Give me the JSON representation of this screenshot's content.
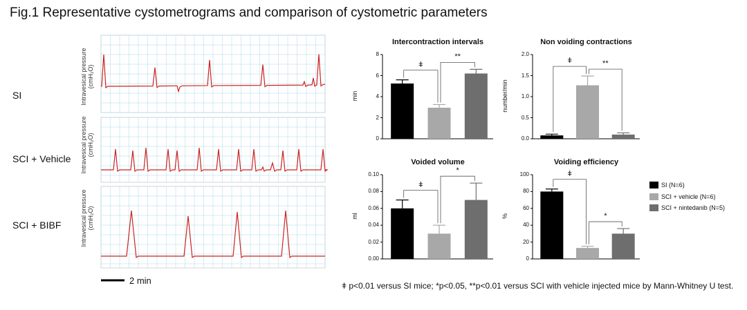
{
  "figure_title": "Fig.1 Representative cystometrograms and comparison of cystometric parameters",
  "traces": {
    "rows": [
      {
        "label": "SI"
      },
      {
        "label": "SCI + Vehicle"
      },
      {
        "label": "SCI + BIBF"
      }
    ],
    "ylabel_line1": "Intravesical pressure",
    "ylabel_line2": "(cmH₂O)",
    "scale_bar_label": "2 min",
    "trace_color": "#cc2222",
    "grid_color": "#a8d8e8"
  },
  "legend": [
    {
      "label": "SI (N=6)",
      "color": "#000000"
    },
    {
      "label": "SCI + vehicle (N=6)",
      "color": "#a8a8a8"
    },
    {
      "label": "SCI + nintedanib (N=5)",
      "color": "#6e6e6e"
    }
  ],
  "footnote": "ǂ p<0.01 versus SI mice; *p<0.05, **p<0.01 versus SCI with vehicle injected mice by Mann-Whitney U test.",
  "chart_data": [
    {
      "type": "bar",
      "title": "Intercontraction intervals",
      "ylabel": "min",
      "ylim": [
        0,
        8
      ],
      "yticks": [
        "0",
        "2",
        "4",
        "6",
        "8"
      ],
      "values": [
        5.25,
        2.95,
        6.2
      ],
      "errors": [
        0.35,
        0.3,
        0.4
      ],
      "colors": [
        "#000000",
        "#a8a8a8",
        "#6e6e6e"
      ],
      "significance": [
        {
          "from": 0,
          "to": 1,
          "label": "ǂ"
        },
        {
          "from": 1,
          "to": 2,
          "label": "**"
        }
      ]
    },
    {
      "type": "bar",
      "title": "Non voiding contractions",
      "ylabel": "number/min",
      "ylim": [
        0,
        2.0
      ],
      "yticks": [
        "0.0",
        "0.5",
        "1.0",
        "1.5",
        "2.0"
      ],
      "values": [
        0.08,
        1.27,
        0.1
      ],
      "errors": [
        0.03,
        0.22,
        0.04
      ],
      "colors": [
        "#000000",
        "#a8a8a8",
        "#6e6e6e"
      ],
      "significance": [
        {
          "from": 0,
          "to": 1,
          "label": "ǂ"
        },
        {
          "from": 1,
          "to": 2,
          "label": "**"
        }
      ]
    },
    {
      "type": "bar",
      "title": "Voided volume",
      "ylabel": "ml",
      "ylim": [
        0,
        0.1
      ],
      "yticks": [
        "0.00",
        "0.02",
        "0.04",
        "0.06",
        "0.08",
        "0.10"
      ],
      "values": [
        0.06,
        0.03,
        0.07
      ],
      "errors": [
        0.01,
        0.01,
        0.02
      ],
      "colors": [
        "#000000",
        "#a8a8a8",
        "#6e6e6e"
      ],
      "significance": [
        {
          "from": 0,
          "to": 1,
          "label": "ǂ"
        },
        {
          "from": 1,
          "to": 2,
          "label": "*"
        }
      ]
    },
    {
      "type": "bar",
      "title": "Voiding efficiency",
      "ylabel": "%",
      "ylim": [
        0,
        100
      ],
      "yticks": [
        "0",
        "20",
        "40",
        "60",
        "80",
        "100"
      ],
      "values": [
        80,
        13,
        30
      ],
      "errors": [
        3,
        2,
        6
      ],
      "colors": [
        "#000000",
        "#a8a8a8",
        "#6e6e6e"
      ],
      "significance": [
        {
          "from": 0,
          "to": 1,
          "label": "ǂ"
        },
        {
          "from": 1,
          "to": 2,
          "label": "*"
        }
      ]
    }
  ]
}
